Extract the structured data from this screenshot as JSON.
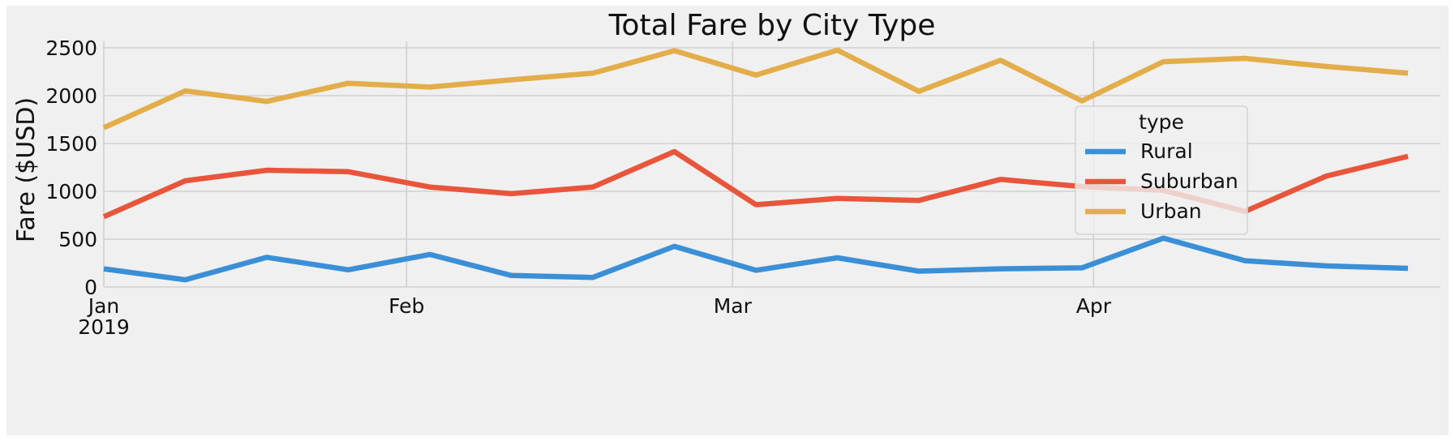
{
  "chart_data": {
    "type": "line",
    "title": "Total Fare by City Type",
    "xlabel": "",
    "ylabel": "Fare ($USD)",
    "ylim": [
      0,
      2500
    ],
    "yticks": [
      0,
      500,
      1000,
      1500,
      2000,
      2500
    ],
    "xlim": [
      "2019-01-06",
      "2019-04-28"
    ],
    "x_major_ticks": [
      {
        "date": "2019-01-06",
        "label": "Jan",
        "sublabel": "2019"
      },
      {
        "date": "2019-02-01",
        "label": "Feb",
        "sublabel": ""
      },
      {
        "date": "2019-03-01",
        "label": "Mar",
        "sublabel": ""
      },
      {
        "date": "2019-04-01",
        "label": "Apr",
        "sublabel": ""
      }
    ],
    "grid": true,
    "legend": {
      "title": "type",
      "placement": "center-right"
    },
    "x": [
      "2019-01-06",
      "2019-01-13",
      "2019-01-20",
      "2019-01-27",
      "2019-02-03",
      "2019-02-10",
      "2019-02-17",
      "2019-02-24",
      "2019-03-03",
      "2019-03-10",
      "2019-03-17",
      "2019-03-24",
      "2019-03-31",
      "2019-04-07",
      "2019-04-14",
      "2019-04-21",
      "2019-04-28"
    ],
    "series": [
      {
        "name": "Rural",
        "color": "#3b8fd6",
        "values": [
          190,
          75,
          310,
          180,
          340,
          120,
          100,
          425,
          175,
          305,
          165,
          190,
          200,
          510,
          275,
          220,
          195
        ]
      },
      {
        "name": "Suburban",
        "color": "#e8553a",
        "values": [
          735,
          1110,
          1220,
          1205,
          1045,
          975,
          1045,
          1415,
          860,
          925,
          905,
          1125,
          1050,
          1010,
          790,
          1160,
          1365
        ]
      },
      {
        "name": "Urban",
        "color": "#e3ae4a",
        "values": [
          1665,
          2050,
          1940,
          2130,
          2090,
          2165,
          2235,
          2470,
          2215,
          2475,
          2045,
          2370,
          1945,
          2355,
          2390,
          2305,
          2235
        ]
      }
    ]
  }
}
